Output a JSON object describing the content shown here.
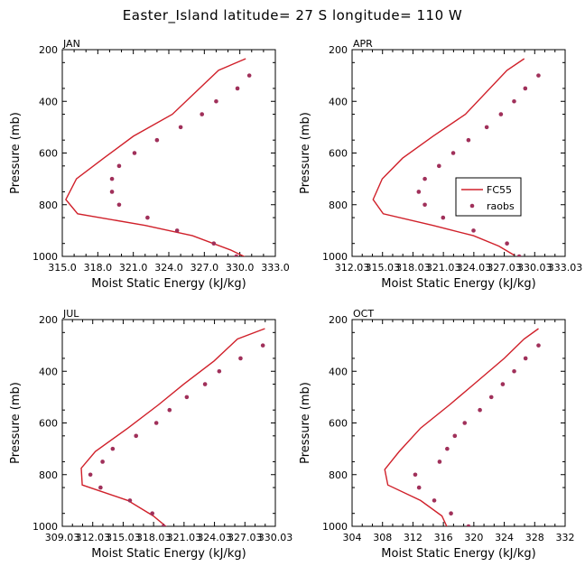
{
  "title": "Easter_Island  latitude= 27 S longitude= 110 W",
  "colors": {
    "fc55": "#d0202a",
    "raobs": "#a0305a",
    "axis": "#000000"
  },
  "legend": {
    "fc55_label": "FC55",
    "raobs_label": "raobs"
  },
  "chart_data": [
    {
      "type": "line",
      "month": "JAN",
      "xlabel": "Moist Static Energy (kJ/kg)",
      "ylabel": "Pressure (mb)",
      "xlim": [
        315.0,
        333.0
      ],
      "ylim": [
        1000,
        200
      ],
      "xticks": [
        315.0,
        318.0,
        321.0,
        324.0,
        327.0,
        330.0,
        333.0
      ],
      "xtick_labels": [
        "315.0",
        "318.0",
        "321.0",
        "324.0",
        "327.0",
        "330.0",
        "333.0"
      ],
      "yticks": [
        200,
        400,
        600,
        800,
        1000
      ],
      "ytick_labels": [
        "200",
        "400",
        "600",
        "800",
        "1000"
      ],
      "series": [
        {
          "name": "FC55",
          "style": "line",
          "x": [
            330.5,
            328.2,
            324.3,
            321.0,
            318.5,
            316.2,
            315.3,
            316.3,
            322.0,
            326.0,
            329.2,
            330.8
          ],
          "y": [
            235,
            280,
            450,
            535,
            620,
            700,
            780,
            835,
            880,
            920,
            975,
            1010
          ]
        },
        {
          "name": "raobs",
          "style": "points",
          "x": [
            330.8,
            329.8,
            328.0,
            326.8,
            325.0,
            323.0,
            321.1,
            319.8,
            319.2,
            319.2,
            319.8,
            322.2,
            324.7,
            327.8,
            329.7
          ],
          "y": [
            300,
            350,
            400,
            450,
            500,
            550,
            600,
            650,
            700,
            750,
            800,
            850,
            900,
            950,
            1000
          ]
        }
      ]
    },
    {
      "type": "line",
      "month": "APR",
      "xlabel": "Moist Static Energy (kJ/kg)",
      "ylabel": "Pressure (mb)",
      "xlim": [
        312.03,
        333.03
      ],
      "ylim": [
        1000,
        200
      ],
      "xticks": [
        312.03,
        315.03,
        318.03,
        321.03,
        324.03,
        327.03,
        330.03,
        333.03
      ],
      "xtick_labels": [
        "312.03",
        "315.03",
        "318.03",
        "321.03",
        "324.03",
        "327.03",
        "330.03",
        "333.03"
      ],
      "yticks": [
        200,
        400,
        600,
        800,
        1000
      ],
      "ytick_labels": [
        "200",
        "400",
        "600",
        "800",
        "1000"
      ],
      "series": [
        {
          "name": "FC55",
          "style": "line",
          "x": [
            329.0,
            327.3,
            323.2,
            320.0,
            317.0,
            315.0,
            314.1,
            315.1,
            320.0,
            324.0,
            326.5,
            328.0
          ],
          "y": [
            235,
            280,
            450,
            535,
            620,
            700,
            780,
            835,
            880,
            920,
            960,
            995
          ]
        },
        {
          "name": "raobs",
          "style": "points",
          "x": [
            330.4,
            329.1,
            328.0,
            326.7,
            325.3,
            323.5,
            322.0,
            320.6,
            319.2,
            318.6,
            319.2,
            321.0,
            324.0,
            327.3,
            328.5
          ],
          "y": [
            300,
            350,
            400,
            450,
            500,
            550,
            600,
            650,
            700,
            750,
            800,
            850,
            900,
            950,
            1000
          ]
        }
      ]
    },
    {
      "type": "line",
      "month": "JUL",
      "xlabel": "Moist Static Energy (kJ/kg)",
      "ylabel": "Pressure (mb)",
      "xlim": [
        309.03,
        330.03
      ],
      "ylim": [
        1000,
        200
      ],
      "xticks": [
        309.03,
        312.03,
        315.03,
        318.03,
        321.03,
        324.03,
        327.03,
        330.03
      ],
      "xtick_labels": [
        "309.03",
        "312.03",
        "315.03",
        "318.03",
        "321.03",
        "324.03",
        "327.03",
        "330.03"
      ],
      "yticks": [
        200,
        400,
        600,
        800,
        1000
      ],
      "ytick_labels": [
        "200",
        "400",
        "600",
        "800",
        "1000"
      ],
      "series": [
        {
          "name": "FC55",
          "style": "line",
          "x": [
            329.0,
            326.3,
            324.0,
            321.0,
            318.5,
            315.5,
            312.3,
            310.9,
            311.0,
            315.5,
            318.0,
            319.7
          ],
          "y": [
            235,
            275,
            360,
            450,
            530,
            620,
            710,
            775,
            840,
            900,
            960,
            1015
          ]
        },
        {
          "name": "raobs",
          "style": "points",
          "x": [
            328.8,
            326.6,
            324.5,
            323.1,
            321.3,
            319.6,
            318.3,
            316.3,
            314.0,
            313.0,
            311.8,
            312.8,
            315.7,
            317.9,
            319.0
          ],
          "y": [
            300,
            350,
            400,
            450,
            500,
            550,
            600,
            650,
            700,
            750,
            800,
            850,
            900,
            950,
            1000
          ]
        }
      ]
    },
    {
      "type": "line",
      "month": "OCT",
      "xlabel": "Moist Static Energy (kJ/kg)",
      "ylabel": "Pressure (mb)",
      "xlim": [
        304,
        332
      ],
      "ylim": [
        1000,
        200
      ],
      "xticks": [
        304,
        308,
        312,
        316,
        320,
        324,
        328,
        332
      ],
      "xtick_labels": [
        "304",
        "308",
        "312",
        "316",
        "320",
        "324",
        "328",
        "332"
      ],
      "yticks": [
        200,
        400,
        600,
        800,
        1000
      ],
      "ytick_labels": [
        "200",
        "400",
        "600",
        "800",
        "1000"
      ],
      "series": [
        {
          "name": "FC55",
          "style": "line",
          "x": [
            328.5,
            326.6,
            324.0,
            320.0,
            316.8,
            313.0,
            310.2,
            308.3,
            308.7,
            313.0,
            315.8,
            316.6
          ],
          "y": [
            235,
            275,
            350,
            450,
            530,
            620,
            710,
            780,
            840,
            900,
            960,
            1010
          ]
        },
        {
          "name": "raobs",
          "style": "points",
          "x": [
            328.5,
            326.8,
            325.3,
            323.8,
            322.3,
            320.8,
            318.8,
            317.5,
            316.5,
            315.5,
            312.3,
            312.8,
            314.8,
            317.0,
            319.3
          ],
          "y": [
            300,
            350,
            400,
            450,
            500,
            550,
            600,
            650,
            700,
            750,
            800,
            850,
            900,
            950,
            1000
          ]
        }
      ]
    }
  ]
}
